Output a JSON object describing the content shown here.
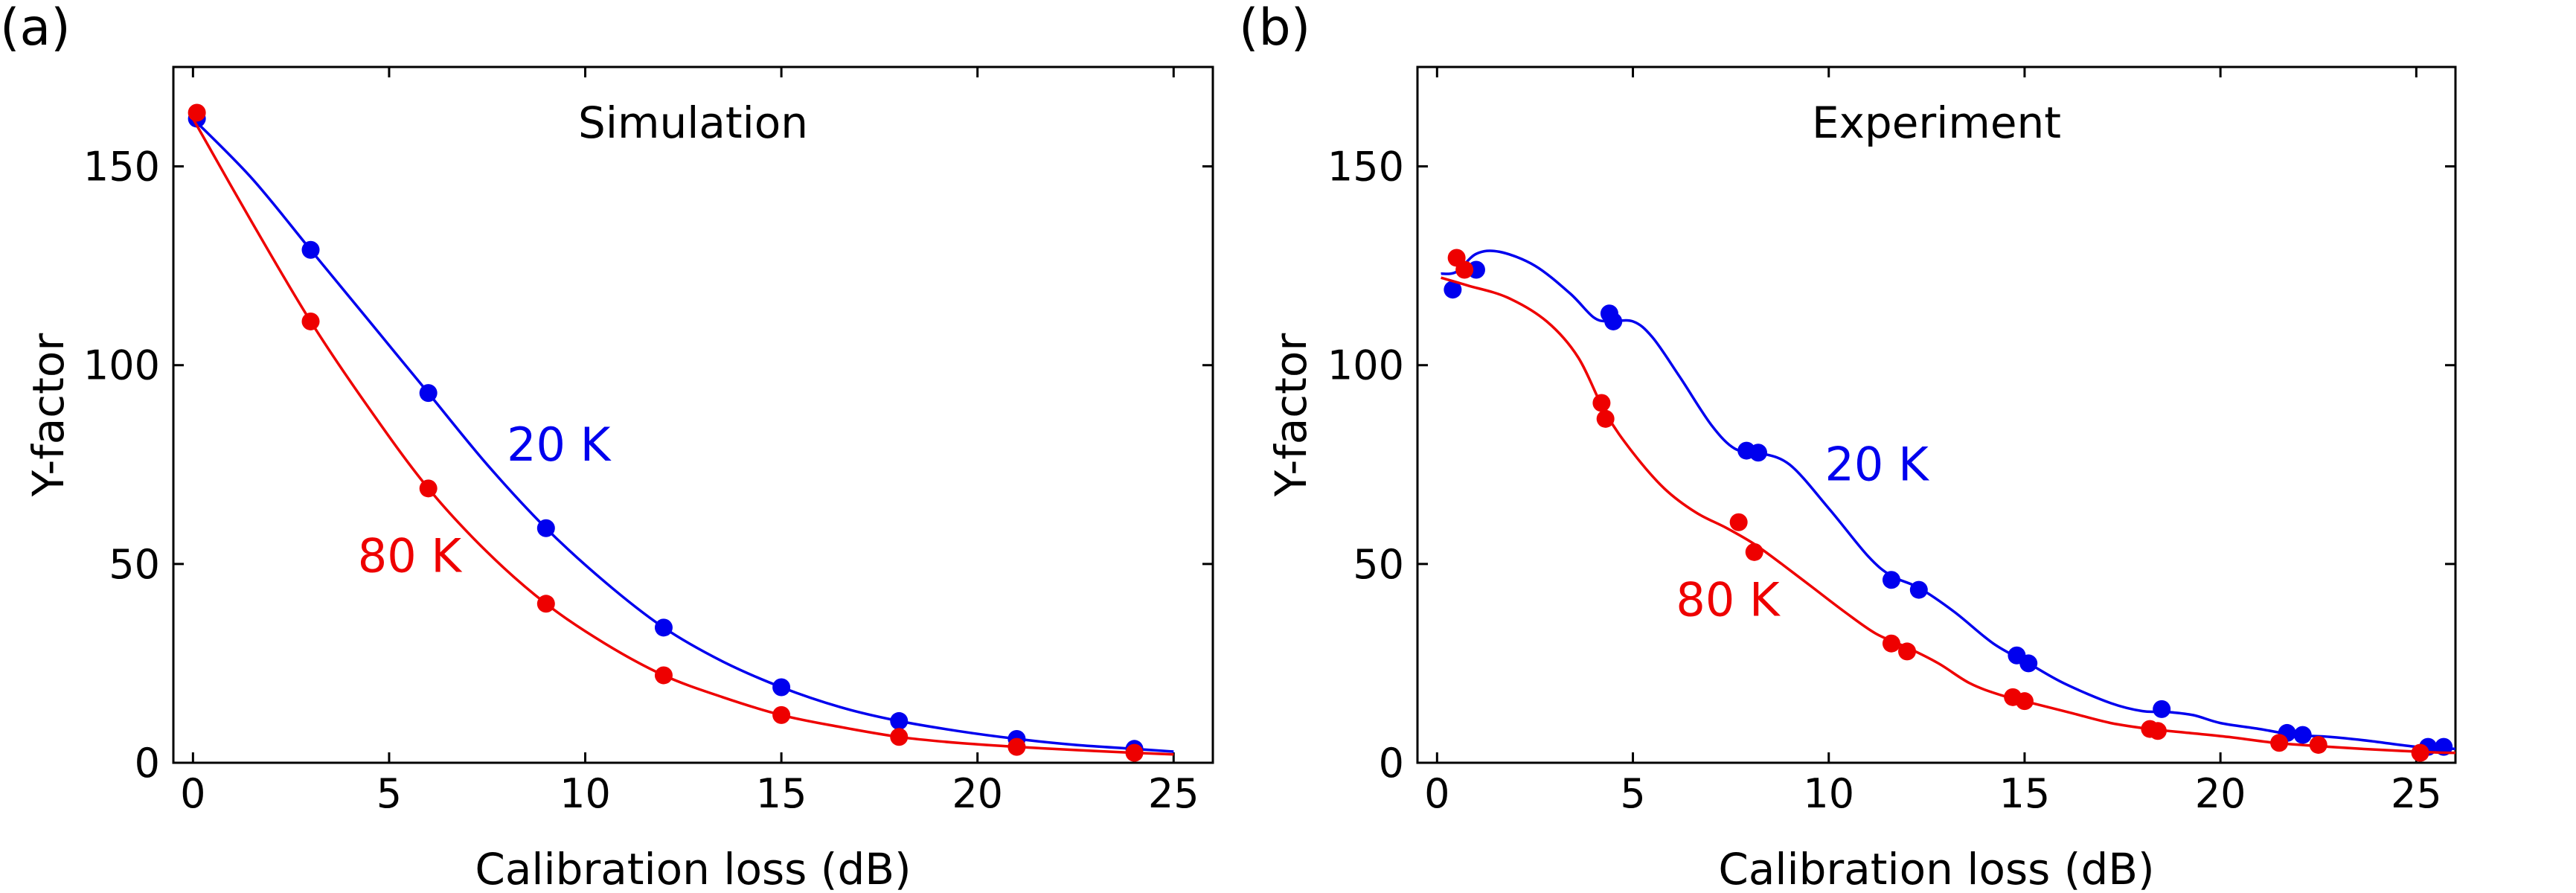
{
  "chart_data": [
    {
      "type": "scatter",
      "panel_label": "(a)",
      "title": "Simulation",
      "xlabel": "Calibration loss (dB)",
      "ylabel": "Y-factor",
      "xlim": [
        -0.5,
        26
      ],
      "ylim": [
        0,
        175
      ],
      "xticks": [
        0,
        5,
        10,
        15,
        20,
        25
      ],
      "yticks": [
        0,
        50,
        100,
        150
      ],
      "series": [
        {
          "name": "20 K",
          "color": "#0000ee",
          "points": [
            [
              0.1,
              162
            ],
            [
              3,
              129
            ],
            [
              6,
              93
            ],
            [
              9,
              59
            ],
            [
              12,
              34
            ],
            [
              15,
              19
            ],
            [
              18,
              10.5
            ],
            [
              21,
              6
            ],
            [
              24,
              3.5
            ]
          ],
          "curve": [
            [
              0,
              162
            ],
            [
              1.5,
              147
            ],
            [
              3,
              129
            ],
            [
              4.5,
              111
            ],
            [
              6,
              93
            ],
            [
              7.5,
              75
            ],
            [
              9,
              59
            ],
            [
              10.5,
              45.5
            ],
            [
              12,
              34
            ],
            [
              13.5,
              25.5
            ],
            [
              15,
              19
            ],
            [
              16.5,
              14
            ],
            [
              18,
              10.5
            ],
            [
              19.5,
              8
            ],
            [
              21,
              6
            ],
            [
              22.5,
              4.5
            ],
            [
              24,
              3.5
            ],
            [
              25,
              2.8
            ]
          ]
        },
        {
          "name": "80 K",
          "color": "#ee0000",
          "points": [
            [
              0.1,
              163.5
            ],
            [
              3,
              111
            ],
            [
              6,
              69
            ],
            [
              9,
              40
            ],
            [
              12,
              22
            ],
            [
              15,
              12
            ],
            [
              18,
              6.5
            ],
            [
              21,
              4
            ],
            [
              24,
              2.5
            ]
          ],
          "curve": [
            [
              0,
              162
            ],
            [
              1.5,
              136
            ],
            [
              3,
              111
            ],
            [
              4.5,
              89
            ],
            [
              6,
              69
            ],
            [
              7.5,
              53
            ],
            [
              9,
              40
            ],
            [
              10.5,
              30
            ],
            [
              12,
              22
            ],
            [
              13.5,
              16.5
            ],
            [
              15,
              12
            ],
            [
              16.5,
              9
            ],
            [
              18,
              6.5
            ],
            [
              19.5,
              5
            ],
            [
              21,
              4
            ],
            [
              22.5,
              3.2
            ],
            [
              24,
              2.5
            ],
            [
              25,
              2.1
            ]
          ]
        }
      ],
      "annotations": [
        {
          "text": "20 K",
          "x": 8,
          "y": 76,
          "color": "#0000ee"
        },
        {
          "text": "80 K",
          "x": 4.2,
          "y": 48,
          "color": "#ee0000"
        }
      ]
    },
    {
      "type": "scatter",
      "panel_label": "(b)",
      "title": "Experiment",
      "xlabel": "Calibration loss (dB)",
      "ylabel": "Y-factor",
      "xlim": [
        -0.5,
        26
      ],
      "ylim": [
        0,
        175
      ],
      "xticks": [
        0,
        5,
        10,
        15,
        20,
        25
      ],
      "yticks": [
        0,
        50,
        100,
        150
      ],
      "series": [
        {
          "name": "20 K",
          "color": "#0000ee",
          "points": [
            [
              0.4,
              119
            ],
            [
              1.0,
              124
            ],
            [
              4.4,
              113
            ],
            [
              4.5,
              111
            ],
            [
              7.9,
              78.5
            ],
            [
              8.2,
              78
            ],
            [
              11.6,
              46
            ],
            [
              12.3,
              43.5
            ],
            [
              14.8,
              27
            ],
            [
              15.1,
              25
            ],
            [
              18.5,
              13.5
            ],
            [
              21.7,
              7.5
            ],
            [
              22.1,
              7
            ],
            [
              25.3,
              4
            ],
            [
              25.7,
              4
            ]
          ],
          "curve": [
            [
              0.1,
              123
            ],
            [
              0.5,
              123.5
            ],
            [
              1.0,
              128
            ],
            [
              1.6,
              128.5
            ],
            [
              2.5,
              125
            ],
            [
              3.4,
              118
            ],
            [
              4.0,
              112
            ],
            [
              4.4,
              111
            ],
            [
              5.0,
              111
            ],
            [
              5.5,
              107
            ],
            [
              6.2,
              97
            ],
            [
              7.0,
              85
            ],
            [
              7.6,
              79
            ],
            [
              8.2,
              78
            ],
            [
              9.0,
              75
            ],
            [
              10.0,
              64
            ],
            [
              11.0,
              52
            ],
            [
              11.6,
              47
            ],
            [
              12.3,
              44
            ],
            [
              13.2,
              38
            ],
            [
              14.2,
              30
            ],
            [
              15.1,
              25
            ],
            [
              16.0,
              20
            ],
            [
              17.2,
              15
            ],
            [
              18.0,
              13
            ],
            [
              18.6,
              12.8
            ],
            [
              19.3,
              12
            ],
            [
              20.0,
              10
            ],
            [
              21.0,
              8.5
            ],
            [
              21.9,
              7
            ],
            [
              22.8,
              6.5
            ],
            [
              23.8,
              5.5
            ],
            [
              25.0,
              4
            ],
            [
              26,
              3.5
            ]
          ]
        },
        {
          "name": "80 K",
          "color": "#ee0000",
          "points": [
            [
              0.5,
              127
            ],
            [
              0.7,
              124
            ],
            [
              4.2,
              90.5
            ],
            [
              4.3,
              86.5
            ],
            [
              7.7,
              60.5
            ],
            [
              8.1,
              53
            ],
            [
              11.6,
              30
            ],
            [
              12.0,
              28
            ],
            [
              14.7,
              16.5
            ],
            [
              15.0,
              15.5
            ],
            [
              18.2,
              8.5
            ],
            [
              18.4,
              8
            ],
            [
              21.5,
              5
            ],
            [
              22.5,
              4.5
            ],
            [
              25.1,
              2.5
            ]
          ],
          "curve": [
            [
              0.1,
              122
            ],
            [
              0.8,
              120
            ],
            [
              1.8,
              117
            ],
            [
              2.8,
              111
            ],
            [
              3.6,
              102
            ],
            [
              4.3,
              88
            ],
            [
              5.0,
              78
            ],
            [
              5.8,
              69
            ],
            [
              6.6,
              63
            ],
            [
              7.4,
              59
            ],
            [
              8.1,
              55
            ],
            [
              8.8,
              50
            ],
            [
              9.6,
              44
            ],
            [
              10.4,
              38
            ],
            [
              11.2,
              32.5
            ],
            [
              12.0,
              29
            ],
            [
              12.8,
              25
            ],
            [
              13.6,
              20
            ],
            [
              14.4,
              17
            ],
            [
              15.2,
              15
            ],
            [
              16.2,
              12.5
            ],
            [
              17.2,
              10
            ],
            [
              18.2,
              8.5
            ],
            [
              19.2,
              7.5
            ],
            [
              20.2,
              6.5
            ],
            [
              21.4,
              5
            ],
            [
              22.5,
              4.2
            ],
            [
              23.6,
              3.5
            ],
            [
              24.6,
              3
            ],
            [
              25.5,
              2.6
            ],
            [
              26,
              2.5
            ]
          ]
        }
      ],
      "annotations": [
        {
          "text": "20 K",
          "x": 9.9,
          "y": 71,
          "color": "#0000ee"
        },
        {
          "text": "80 K",
          "x": 6.1,
          "y": 37,
          "color": "#ee0000"
        }
      ]
    }
  ]
}
